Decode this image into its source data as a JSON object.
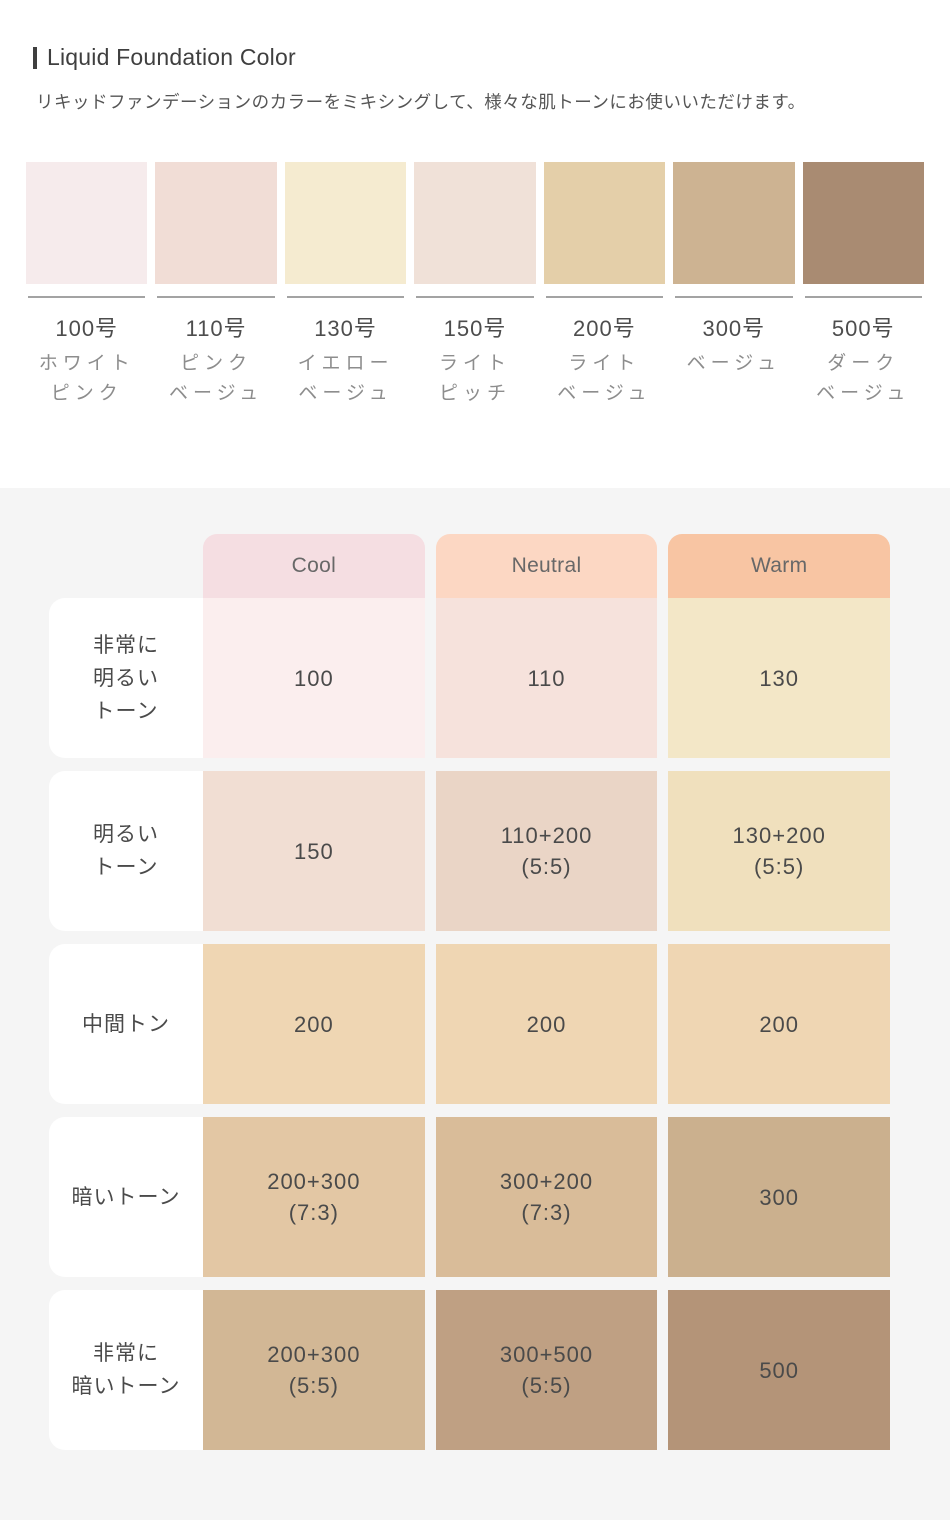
{
  "header": {
    "title": "Liquid Foundation Color",
    "subtitle": "リキッドファンデーションのカラーをミキシングして、様々な肌トーンにお使いいただけます。"
  },
  "swatches": [
    {
      "number": "100号",
      "name_lines": [
        "ホワイト",
        "ピンク"
      ],
      "color": "#f6ebec"
    },
    {
      "number": "110号",
      "name_lines": [
        "ピンク",
        "ベージュ"
      ],
      "color": "#f1ddd6"
    },
    {
      "number": "130号",
      "name_lines": [
        "イエロー",
        "ベージュ"
      ],
      "color": "#f5ebd0"
    },
    {
      "number": "150号",
      "name_lines": [
        "ライト",
        "ピッチ"
      ],
      "color": "#f0e1d8"
    },
    {
      "number": "200号",
      "name_lines": [
        "ライト",
        "ベージュ"
      ],
      "color": "#e4cfa9"
    },
    {
      "number": "300号",
      "name_lines": [
        "ベージュ"
      ],
      "color": "#cdb392"
    },
    {
      "number": "500号",
      "name_lines": [
        "ダーク",
        "ベージュ"
      ],
      "color": "#a98b72"
    }
  ],
  "mix_table": {
    "columns": [
      {
        "label": "Cool",
        "header_color": "#f5dee2"
      },
      {
        "label": "Neutral",
        "header_color": "#fcd7c3"
      },
      {
        "label": "Warm",
        "header_color": "#f8c5a3"
      }
    ],
    "rows": [
      {
        "label_lines": [
          "非常に",
          "明るい",
          "トーン"
        ],
        "cells": [
          {
            "lines": [
              "100"
            ],
            "color": "#fbeeee"
          },
          {
            "lines": [
              "110"
            ],
            "color": "#f6e2dc"
          },
          {
            "lines": [
              "130"
            ],
            "color": "#f3e7c7"
          }
        ]
      },
      {
        "label_lines": [
          "明るい",
          "トーン"
        ],
        "cells": [
          {
            "lines": [
              "150"
            ],
            "color": "#f1ded3"
          },
          {
            "lines": [
              "110+200",
              "(5:5)"
            ],
            "color": "#ead5c6"
          },
          {
            "lines": [
              "130+200",
              "(5:5)"
            ],
            "color": "#f0e0bd"
          }
        ]
      },
      {
        "label_lines": [
          "中間トン"
        ],
        "cells": [
          {
            "lines": [
              "200"
            ],
            "color": "#efd6b3"
          },
          {
            "lines": [
              "200"
            ],
            "color": "#efd6b3"
          },
          {
            "lines": [
              "200"
            ],
            "color": "#efd6b3"
          }
        ]
      },
      {
        "label_lines": [
          "暗いトーン"
        ],
        "cells": [
          {
            "lines": [
              "200+300",
              "(7:3)"
            ],
            "color": "#e3c7a4"
          },
          {
            "lines": [
              "300+200",
              "(7:3)"
            ],
            "color": "#d9bc99"
          },
          {
            "lines": [
              "300"
            ],
            "color": "#cbb08e"
          }
        ]
      },
      {
        "label_lines": [
          "非常に",
          "暗いトーン"
        ],
        "cells": [
          {
            "lines": [
              "200+300",
              "(5:5)"
            ],
            "color": "#d2b795"
          },
          {
            "lines": [
              "300+500",
              "(5:5)"
            ],
            "color": "#bfa083"
          },
          {
            "lines": [
              "500"
            ],
            "color": "#b49478"
          }
        ]
      }
    ]
  }
}
